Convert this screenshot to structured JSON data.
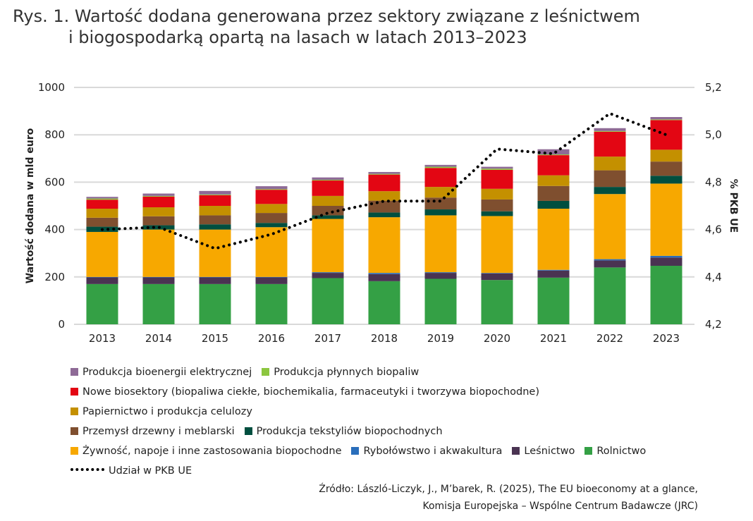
{
  "title_line1": "Rys. 1. Wartość dodana generowana przez sektory związane z leśnictwem",
  "title_line2": "i biogospodarką opartą na lasach w latach 2013–2023",
  "source_line1": "Źródło: László-Liczyk, J., M’barek, R. (2025), The EU bioeconomy at a glance,",
  "source_line2": "Komisja Europejska – Wspólne Centrum Badawcze (JRC)",
  "chart_data": {
    "type": "bar",
    "stacked": true,
    "ylabel": "Wartość dodana w mld euro",
    "y2label": "% PKB UE",
    "ylim": [
      0,
      1000
    ],
    "y2lim": [
      4.2,
      5.2
    ],
    "yticks": [
      "0",
      "200",
      "400",
      "600",
      "800",
      "1000"
    ],
    "y2ticks": [
      "4,2",
      "4,4",
      "4,6",
      "4,8",
      "5,0",
      "5,2"
    ],
    "grid": true,
    "legend_position": "bottom",
    "categories": [
      "2013",
      "2014",
      "2015",
      "2016",
      "2017",
      "2018",
      "2019",
      "2020",
      "2021",
      "2022",
      "2023"
    ],
    "series": [
      {
        "name": "Rolnictwo",
        "color": "#34a045",
        "values": [
          170,
          170,
          170,
          170,
          195,
          182,
          192,
          187,
          197,
          240,
          247
        ]
      },
      {
        "name": "Leśnictwo",
        "color": "#4a3352",
        "values": [
          28,
          28,
          28,
          28,
          22,
          30,
          25,
          28,
          30,
          30,
          35
        ]
      },
      {
        "name": "Rybołówstwo i akwakultura",
        "color": "#2a6ebb",
        "values": [
          2,
          2,
          2,
          2,
          3,
          5,
          3,
          2,
          3,
          5,
          7
        ]
      },
      {
        "name": "Żywność, napoje i inne zastosowania biopochodne",
        "color": "#f7a800",
        "values": [
          190,
          200,
          200,
          210,
          225,
          235,
          240,
          240,
          258,
          275,
          305
        ]
      },
      {
        "name": "Produkcja tekstyliów biopochodnych",
        "color": "#004f3f",
        "values": [
          22,
          18,
          22,
          18,
          15,
          20,
          25,
          20,
          33,
          30,
          33
        ]
      },
      {
        "name": "Przemysł drzewny i meblarski",
        "color": "#7f4f2f",
        "values": [
          38,
          38,
          38,
          42,
          40,
          50,
          50,
          50,
          63,
          70,
          60
        ]
      },
      {
        "name": "Papiernictwo i produkcja celulozy",
        "color": "#c49000",
        "values": [
          38,
          38,
          40,
          38,
          42,
          40,
          45,
          45,
          45,
          58,
          50
        ]
      },
      {
        "name": "Nowe biosektory (biopaliwa ciekłe, biochemikalia, farmaceutyki i tworzywa biopochodne)",
        "color": "#e30613",
        "values": [
          38,
          45,
          45,
          60,
          65,
          70,
          80,
          80,
          85,
          105,
          125
        ]
      },
      {
        "name": "Produkcja płynnych biopaliw",
        "color": "#8cc63f",
        "values": [
          5,
          3,
          3,
          3,
          3,
          3,
          5,
          5,
          3,
          3,
          3
        ]
      },
      {
        "name": "Produkcja bioenergii elektrycznej",
        "color": "#8e6a96",
        "values": [
          7,
          10,
          15,
          12,
          10,
          8,
          8,
          8,
          22,
          12,
          10
        ]
      }
    ],
    "line": {
      "name": "Udział w PKB UE",
      "axis": "right",
      "color": "#000000",
      "values": [
        4.6,
        4.61,
        4.52,
        4.58,
        4.67,
        4.72,
        4.72,
        4.94,
        4.92,
        5.09,
        5.0
      ]
    }
  },
  "legend_order": [
    9,
    8,
    7,
    6,
    5,
    4,
    3,
    2,
    1,
    0
  ]
}
